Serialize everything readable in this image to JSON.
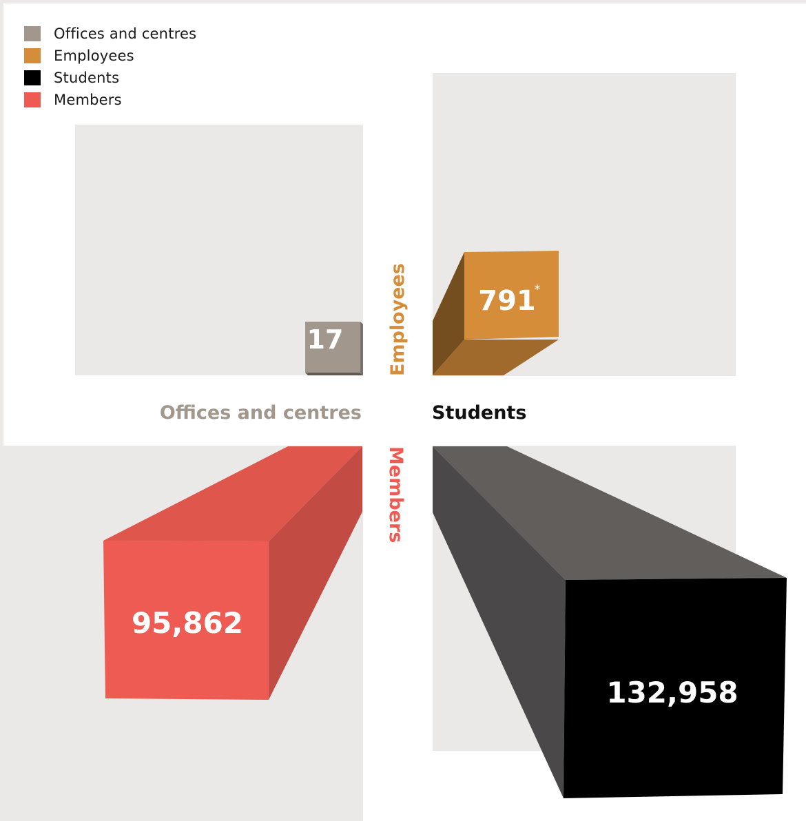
{
  "chart_data": {
    "type": "bar",
    "title": "",
    "categories": [
      "Offices and centres",
      "Employees",
      "Students",
      "Members"
    ],
    "values": [
      17,
      791,
      132958,
      95862
    ],
    "value_labels": [
      "17",
      "791",
      "132,958",
      "95,862"
    ],
    "footnote_marks": [
      "",
      "*",
      "",
      ""
    ],
    "colors": [
      "#a1978d",
      "#d58d3a",
      "#000000",
      "#ed5b52"
    ],
    "legend": {
      "position": "top-left",
      "entries": [
        "Offices and centres",
        "Employees",
        "Students",
        "Members"
      ]
    },
    "quadrant_labels": {
      "offices": "Offices and centres",
      "employees": "Employees",
      "students": "Students",
      "members": "Members"
    },
    "grid": false
  }
}
